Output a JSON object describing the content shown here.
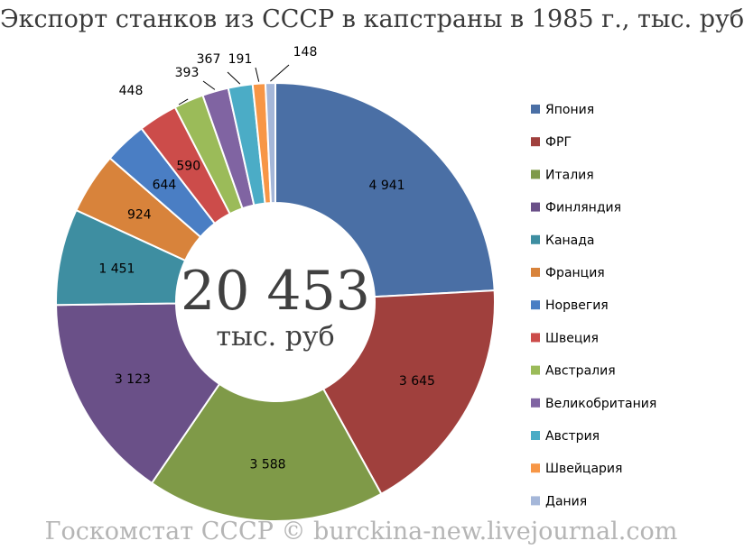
{
  "chart_data": {
    "type": "pie",
    "title": "Экспорт станков из СССР в капстраны в 1985 г., тыс. руб",
    "total_value": "20 453",
    "total_unit": "тыс. руб",
    "source": "Госкомстат СССР © burckina-new.livejournal.com",
    "legend_position": "right",
    "slices": [
      {
        "name": "Япония",
        "value": 4941,
        "label": "4 941",
        "color": "#4a6fa5"
      },
      {
        "name": "ФРГ",
        "value": 3645,
        "label": "3 645",
        "color": "#a0403d"
      },
      {
        "name": "Италия",
        "value": 3588,
        "label": "3 588",
        "color": "#7f9a48"
      },
      {
        "name": "Финляндия",
        "value": 3123,
        "label": "3 123",
        "color": "#6a5088"
      },
      {
        "name": "Канада",
        "value": 1451,
        "label": "1 451",
        "color": "#3e8ea1"
      },
      {
        "name": "Франция",
        "value": 924,
        "label": "924",
        "color": "#d8833b"
      },
      {
        "name": "Норвегия",
        "value": 644,
        "label": "644",
        "color": "#4a7ec4"
      },
      {
        "name": "Швеция",
        "value": 590,
        "label": "590",
        "color": "#cc4c4a"
      },
      {
        "name": "Австралия",
        "value": 448,
        "label": "448",
        "color": "#9bbb59"
      },
      {
        "name": "Великобритания",
        "value": 393,
        "label": "393",
        "color": "#8064a2"
      },
      {
        "name": "Австрия",
        "value": 367,
        "label": "367",
        "color": "#4bacc6"
      },
      {
        "name": "Швейцария",
        "value": 191,
        "label": "191",
        "color": "#f79646"
      },
      {
        "name": "Дания",
        "value": 148,
        "label": "148",
        "color": "#a5b7d9"
      }
    ]
  }
}
